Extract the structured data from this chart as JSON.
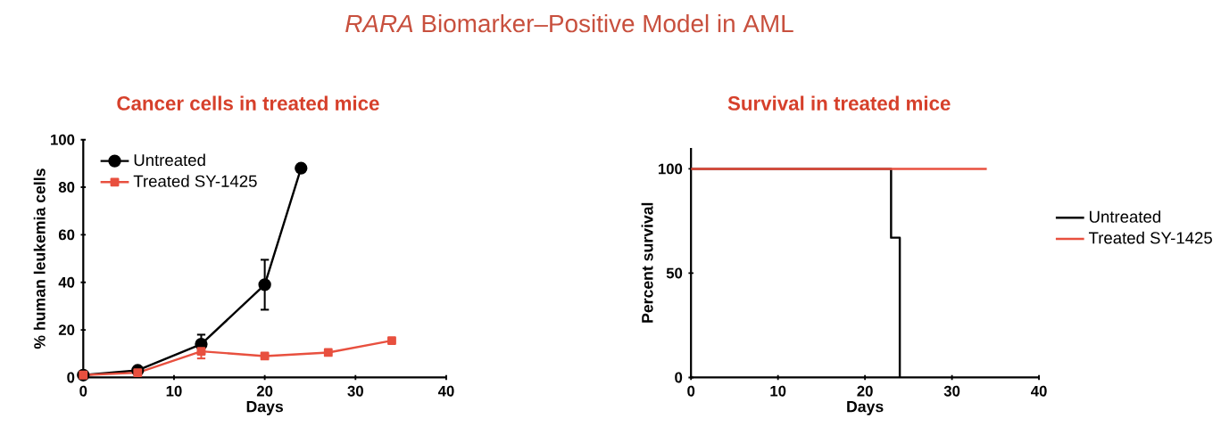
{
  "chart_data": [
    {
      "type": "line",
      "title": "*RARA* Biomarker–Positive Model in AML",
      "subtitle": "Cancer cells in treated mice",
      "xlabel": "Days",
      "ylabel": "% human leukemia cells",
      "xlim": [
        0,
        40
      ],
      "xticks": [
        0,
        10,
        20,
        30,
        40
      ],
      "ylim": [
        0,
        100
      ],
      "yticks": [
        0,
        20,
        40,
        60,
        80,
        100
      ],
      "legend": "top left",
      "grid": false,
      "series": [
        {
          "name": "Untreated",
          "color": "#000000",
          "marker": "circle",
          "x": [
            0,
            6,
            13,
            20,
            24
          ],
          "values": [
            1,
            3,
            14,
            39,
            88
          ],
          "errors": [
            null,
            1,
            4,
            10.5,
            1.5
          ]
        },
        {
          "name": "Treated SY-1425",
          "color": "#e8503f",
          "marker": "square",
          "x": [
            0,
            6,
            13,
            20,
            27,
            34
          ],
          "values": [
            1,
            2,
            11,
            9,
            10.5,
            15.5
          ],
          "errors": [
            null,
            null,
            3,
            null,
            null,
            null
          ]
        }
      ]
    },
    {
      "type": "step",
      "title": "Survival in treated mice",
      "xlabel": "Days",
      "ylabel": "Percent survival",
      "xlim": [
        0,
        40
      ],
      "xticks": [
        0,
        10,
        20,
        30,
        40
      ],
      "ylim": [
        0,
        110
      ],
      "yticks": [
        0,
        50,
        100
      ],
      "legend": "right",
      "grid": false,
      "series": [
        {
          "name": "Untreated",
          "color": "#000000",
          "x": [
            0,
            23,
            24
          ],
          "values": [
            100,
            67,
            0
          ]
        },
        {
          "name": "Treated SY-1425",
          "color": "#e8503f",
          "x": [
            0,
            28,
            34
          ],
          "values": [
            100,
            100,
            100
          ]
        }
      ]
    }
  ]
}
